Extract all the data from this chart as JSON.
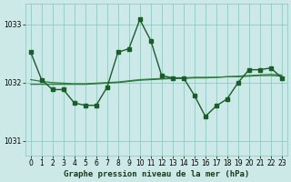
{
  "title": "Graphe pression niveau de la mer (hPa)",
  "background_color": "#cce9e8",
  "grid_color": "#88c4bc",
  "line_color_main": "#1a5c2a",
  "line_color_smooth1": "#2e7d3e",
  "line_color_smooth2": "#2e7d3e",
  "xlim": [
    -0.5,
    23.5
  ],
  "ylim": [
    1030.75,
    1033.35
  ],
  "yticks": [
    1031,
    1032,
    1033
  ],
  "xtick_labels": [
    "0",
    "1",
    "2",
    "3",
    "4",
    "5",
    "6",
    "7",
    "8",
    "9",
    "10",
    "11",
    "12",
    "13",
    "14",
    "15",
    "16",
    "17",
    "18",
    "19",
    "20",
    "21",
    "22",
    "23"
  ],
  "x": [
    0,
    1,
    2,
    3,
    4,
    5,
    6,
    7,
    8,
    9,
    10,
    11,
    12,
    13,
    14,
    15,
    16,
    17,
    18,
    19,
    20,
    21,
    22,
    23
  ],
  "y_main": [
    1032.52,
    1032.05,
    1031.88,
    1031.88,
    1031.65,
    1031.61,
    1031.61,
    1031.92,
    1032.52,
    1032.58,
    1033.08,
    1032.72,
    1032.12,
    1032.08,
    1032.08,
    1031.78,
    1031.42,
    1031.6,
    1031.72,
    1032.0,
    1032.22,
    1032.22,
    1032.25,
    1032.08
  ],
  "y_smooth1": [
    1032.05,
    1032.02,
    1032.0,
    1031.99,
    1031.98,
    1031.98,
    1031.99,
    1032.0,
    1032.01,
    1032.03,
    1032.05,
    1032.06,
    1032.07,
    1032.08,
    1032.08,
    1032.09,
    1032.09,
    1032.09,
    1032.1,
    1032.1,
    1032.11,
    1032.12,
    1032.12,
    1032.11
  ],
  "y_smooth2": [
    1031.97,
    1031.97,
    1031.97,
    1031.97,
    1031.97,
    1031.97,
    1031.98,
    1031.99,
    1032.0,
    1032.02,
    1032.04,
    1032.05,
    1032.06,
    1032.07,
    1032.07,
    1032.08,
    1032.08,
    1032.09,
    1032.1,
    1032.11,
    1032.12,
    1032.13,
    1032.14,
    1032.13
  ],
  "title_fontsize": 6.5,
  "tick_fontsize": 5.5
}
